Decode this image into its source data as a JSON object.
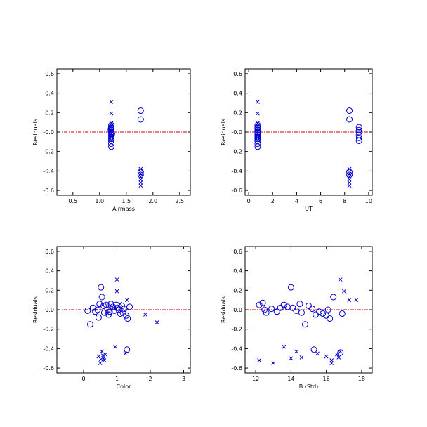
{
  "colors": {
    "marker": "#0000cc",
    "reference_line": "#cc0000",
    "axes": "#000000"
  },
  "chart_data": [
    {
      "type": "scatter",
      "xlabel": "Airmass",
      "ylabel": "Residuals",
      "xlim": [
        0.2,
        2.7
      ],
      "ylim": [
        -0.65,
        0.65
      ],
      "xticks": [
        "0.5",
        "1.0",
        "1.5",
        "2.0",
        "2.5"
      ],
      "xtick_values": [
        0.5,
        1.0,
        1.5,
        2.0,
        2.5
      ],
      "yticks": [
        "0.6",
        "0.4",
        "0.2",
        "-0.0",
        "-0.2",
        "-0.4",
        "-0.6"
      ],
      "ytick_values": [
        0.6,
        0.4,
        0.2,
        0.0,
        -0.2,
        -0.4,
        -0.6
      ],
      "reference_y": 0,
      "series": [
        {
          "marker": "circle",
          "points": [
            [
              1.22,
              0.07
            ],
            [
              1.22,
              0.05
            ],
            [
              1.22,
              0.04
            ],
            [
              1.22,
              0.02
            ],
            [
              1.22,
              0.0
            ],
            [
              1.22,
              -0.01
            ],
            [
              1.22,
              -0.03
            ],
            [
              1.22,
              -0.05
            ],
            [
              1.22,
              -0.07
            ],
            [
              1.22,
              -0.09
            ],
            [
              1.22,
              -0.12
            ],
            [
              1.22,
              -0.15
            ],
            [
              1.21,
              0.03
            ],
            [
              1.23,
              -0.02
            ],
            [
              1.77,
              0.22
            ],
            [
              1.77,
              0.13
            ],
            [
              1.77,
              -0.41
            ],
            [
              1.77,
              -0.44
            ]
          ]
        },
        {
          "marker": "x",
          "points": [
            [
              1.22,
              0.31
            ],
            [
              1.22,
              0.19
            ],
            [
              1.22,
              0.09
            ],
            [
              1.22,
              0.06
            ],
            [
              1.22,
              0.01
            ],
            [
              1.22,
              -0.02
            ],
            [
              1.22,
              -0.04
            ],
            [
              1.22,
              -0.06
            ],
            [
              1.77,
              -0.38
            ],
            [
              1.77,
              -0.43
            ],
            [
              1.77,
              -0.46
            ],
            [
              1.77,
              -0.49
            ],
            [
              1.77,
              -0.52
            ],
            [
              1.77,
              -0.55
            ]
          ]
        }
      ]
    },
    {
      "type": "scatter",
      "xlabel": "UT",
      "ylabel": "Residuals",
      "xlim": [
        -0.3,
        10.3
      ],
      "ylim": [
        -0.65,
        0.65
      ],
      "xticks": [
        "0",
        "2",
        "4",
        "6",
        "8",
        "10"
      ],
      "xtick_values": [
        0,
        2,
        4,
        6,
        8,
        10
      ],
      "yticks": [
        "0.6",
        "0.4",
        "0.2",
        "-0.0",
        "-0.2",
        "-0.4",
        "-0.6"
      ],
      "ytick_values": [
        0.6,
        0.4,
        0.2,
        0.0,
        -0.2,
        -0.4,
        -0.6
      ],
      "reference_y": 0,
      "series": [
        {
          "marker": "circle",
          "points": [
            [
              0.75,
              0.07
            ],
            [
              0.75,
              0.05
            ],
            [
              0.75,
              0.04
            ],
            [
              0.75,
              0.02
            ],
            [
              0.75,
              0.0
            ],
            [
              0.75,
              -0.01
            ],
            [
              0.75,
              -0.03
            ],
            [
              0.75,
              -0.05
            ],
            [
              0.75,
              -0.07
            ],
            [
              0.75,
              -0.09
            ],
            [
              0.75,
              -0.12
            ],
            [
              0.75,
              -0.15
            ],
            [
              8.4,
              0.22
            ],
            [
              8.4,
              0.13
            ],
            [
              8.4,
              -0.41
            ],
            [
              8.4,
              -0.44
            ],
            [
              9.2,
              0.05
            ],
            [
              9.2,
              0.02
            ],
            [
              9.2,
              0.0
            ],
            [
              9.2,
              -0.03
            ],
            [
              9.2,
              -0.06
            ],
            [
              9.2,
              -0.09
            ]
          ]
        },
        {
          "marker": "x",
          "points": [
            [
              0.75,
              0.31
            ],
            [
              0.75,
              0.19
            ],
            [
              0.75,
              0.09
            ],
            [
              0.75,
              0.06
            ],
            [
              0.75,
              0.01
            ],
            [
              0.75,
              -0.02
            ],
            [
              0.75,
              -0.04
            ],
            [
              0.75,
              -0.06
            ],
            [
              8.4,
              -0.38
            ],
            [
              8.4,
              -0.43
            ],
            [
              8.4,
              -0.46
            ],
            [
              8.4,
              -0.49
            ],
            [
              8.4,
              -0.52
            ],
            [
              8.4,
              -0.55
            ]
          ]
        }
      ]
    },
    {
      "type": "scatter",
      "xlabel": "Color",
      "ylabel": "Residuals",
      "xlim": [
        -0.8,
        3.2
      ],
      "ylim": [
        -0.65,
        0.65
      ],
      "xticks": [
        "0",
        "1",
        "2",
        "3"
      ],
      "xtick_values": [
        0,
        1,
        2,
        3
      ],
      "yticks": [
        "0.6",
        "0.4",
        "0.2",
        "-0.0",
        "-0.2",
        "-0.4",
        "-0.6"
      ],
      "ytick_values": [
        0.6,
        0.4,
        0.2,
        0.0,
        -0.2,
        -0.4,
        -0.6
      ],
      "reference_y": 0,
      "series": [
        {
          "marker": "circle",
          "points": [
            [
              0.12,
              -0.01
            ],
            [
              0.2,
              -0.15
            ],
            [
              0.28,
              0.02
            ],
            [
              0.35,
              -0.02
            ],
            [
              0.42,
              0.0
            ],
            [
              0.48,
              0.06
            ],
            [
              0.52,
              0.23
            ],
            [
              0.55,
              0.13
            ],
            [
              0.6,
              0.04
            ],
            [
              0.62,
              -0.03
            ],
            [
              0.68,
              0.05
            ],
            [
              0.72,
              0.0
            ],
            [
              0.78,
              -0.02
            ],
            [
              0.82,
              0.06
            ],
            [
              0.88,
              0.03
            ],
            [
              0.92,
              -0.01
            ],
            [
              0.98,
              0.05
            ],
            [
              1.02,
              0.02
            ],
            [
              1.05,
              0.0
            ],
            [
              1.1,
              -0.04
            ],
            [
              1.15,
              0.04
            ],
            [
              1.18,
              -0.03
            ],
            [
              1.22,
              0.01
            ],
            [
              1.28,
              -0.06
            ],
            [
              1.32,
              -0.09
            ],
            [
              1.38,
              0.03
            ],
            [
              1.3,
              -0.41
            ],
            [
              0.75,
              -0.05
            ],
            [
              0.45,
              -0.08
            ]
          ]
        },
        {
          "marker": "x",
          "points": [
            [
              1.0,
              0.31
            ],
            [
              1.0,
              0.19
            ],
            [
              1.3,
              0.1
            ],
            [
              1.1,
              0.06
            ],
            [
              0.9,
              0.02
            ],
            [
              0.7,
              -0.02
            ],
            [
              1.85,
              -0.05
            ],
            [
              2.2,
              -0.13
            ],
            [
              0.95,
              -0.38
            ],
            [
              1.25,
              -0.45
            ],
            [
              0.55,
              -0.43
            ],
            [
              0.58,
              -0.47
            ],
            [
              0.6,
              -0.5
            ],
            [
              0.62,
              -0.52
            ],
            [
              0.5,
              -0.55
            ],
            [
              0.45,
              -0.48
            ],
            [
              0.65,
              -0.46
            ],
            [
              0.52,
              -0.51
            ]
          ]
        }
      ]
    },
    {
      "type": "scatter",
      "xlabel": "B (Std)",
      "ylabel": "Residuals",
      "xlim": [
        11.4,
        18.6
      ],
      "ylim": [
        -0.65,
        0.65
      ],
      "xticks": [
        "12",
        "14",
        "16",
        "18"
      ],
      "xtick_values": [
        12,
        14,
        16,
        18
      ],
      "yticks": [
        "0.6",
        "0.4",
        "0.2",
        "-0.0",
        "-0.2",
        "-0.4",
        "-0.6"
      ],
      "ytick_values": [
        0.6,
        0.4,
        0.2,
        0.0,
        -0.2,
        -0.4,
        -0.6
      ],
      "reference_y": 0,
      "series": [
        {
          "marker": "circle",
          "points": [
            [
              12.2,
              0.05
            ],
            [
              12.4,
              0.07
            ],
            [
              12.5,
              0.0
            ],
            [
              12.6,
              -0.03
            ],
            [
              12.9,
              0.01
            ],
            [
              13.2,
              -0.02
            ],
            [
              13.4,
              0.02
            ],
            [
              13.6,
              0.05
            ],
            [
              13.8,
              0.03
            ],
            [
              14.0,
              0.23
            ],
            [
              14.1,
              0.02
            ],
            [
              14.3,
              -0.01
            ],
            [
              14.5,
              0.06
            ],
            [
              14.6,
              -0.03
            ],
            [
              14.8,
              -0.15
            ],
            [
              15.0,
              0.04
            ],
            [
              15.2,
              0.01
            ],
            [
              15.4,
              -0.05
            ],
            [
              15.6,
              -0.02
            ],
            [
              15.8,
              -0.04
            ],
            [
              16.0,
              -0.06
            ],
            [
              16.2,
              -0.09
            ],
            [
              16.4,
              0.13
            ],
            [
              15.3,
              -0.41
            ],
            [
              16.8,
              -0.44
            ],
            [
              16.9,
              -0.04
            ],
            [
              16.1,
              0.0
            ]
          ]
        },
        {
          "marker": "x",
          "points": [
            [
              16.8,
              0.31
            ],
            [
              17.0,
              0.19
            ],
            [
              17.3,
              0.1
            ],
            [
              17.7,
              0.1
            ],
            [
              12.2,
              -0.52
            ],
            [
              13.0,
              -0.55
            ],
            [
              13.6,
              -0.38
            ],
            [
              14.0,
              -0.5
            ],
            [
              14.3,
              -0.43
            ],
            [
              14.6,
              -0.49
            ],
            [
              15.5,
              -0.45
            ],
            [
              16.0,
              -0.48
            ],
            [
              16.3,
              -0.52
            ],
            [
              16.3,
              -0.55
            ],
            [
              16.6,
              -0.46
            ],
            [
              16.7,
              -0.49
            ],
            [
              16.8,
              -0.43
            ]
          ]
        }
      ]
    }
  ]
}
